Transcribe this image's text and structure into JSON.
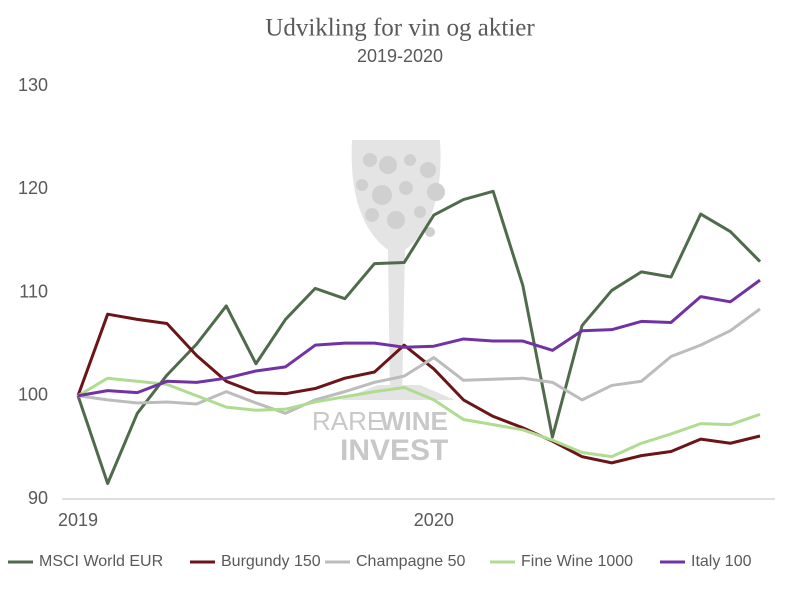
{
  "chart_data": {
    "type": "line",
    "title": "Udvikling for vin og aktier",
    "subtitle": "2019-2020",
    "categories": [
      "2019",
      null,
      null,
      null,
      null,
      null,
      null,
      null,
      null,
      null,
      null,
      null,
      "2020",
      null,
      null,
      null,
      null,
      null,
      null,
      null,
      null,
      null,
      null,
      null
    ],
    "ylim": [
      90,
      130
    ],
    "yticks": [
      90,
      100,
      110,
      120,
      130
    ],
    "grid": false,
    "legend": "bottom",
    "watermark": {
      "rare": "RARE",
      "wine": "WINE",
      "invest": "INVEST"
    },
    "series": [
      {
        "name": "MSCI World EUR",
        "color": "#4f6b4c",
        "values": [
          100,
          91.5,
          98.3,
          102,
          105,
          108.7,
          103.1,
          107.4,
          110.4,
          109.4,
          112.8,
          112.9,
          117.5,
          119,
          119.8,
          110.7,
          96,
          106.8,
          110.2,
          112,
          111.5,
          117.6,
          115.9,
          113
        ]
      },
      {
        "name": "Burgundy 150",
        "color": "#6b1518",
        "values": [
          100,
          107.9,
          107.4,
          107,
          103.9,
          101.4,
          100.3,
          100.2,
          100.7,
          101.7,
          102.3,
          104.9,
          102.6,
          99.6,
          98,
          96.9,
          95.6,
          94.1,
          93.5,
          94.2,
          94.6,
          95.8,
          95.4,
          96.1
        ]
      },
      {
        "name": "Champagne 50",
        "color": "#bcbcbc",
        "values": [
          100,
          99.6,
          99.3,
          99.4,
          99.2,
          100.4,
          99.3,
          98.3,
          99.6,
          100.4,
          101.3,
          101.9,
          103.7,
          101.5,
          101.6,
          101.7,
          101.3,
          99.6,
          101,
          101.4,
          103.8,
          104.9,
          106.3,
          108.4
        ]
      },
      {
        "name": "Fine Wine 1000",
        "color": "#b0dc92",
        "values": [
          100,
          101.7,
          101.4,
          101.1,
          100,
          98.9,
          98.6,
          98.7,
          99.4,
          99.9,
          100.4,
          100.8,
          99.6,
          97.7,
          97.2,
          96.7,
          95.7,
          94.5,
          94.1,
          95.4,
          96.3,
          97.3,
          97.2,
          98.2
        ]
      },
      {
        "name": "Italy 100",
        "color": "#7233a2",
        "values": [
          100,
          100.5,
          100.3,
          101.4,
          101.3,
          101.7,
          102.4,
          102.8,
          104.9,
          105.1,
          105.1,
          104.7,
          104.8,
          105.5,
          105.3,
          105.3,
          104.4,
          106.3,
          106.4,
          107.2,
          107.1,
          109.6,
          109.1,
          111.2
        ]
      }
    ]
  }
}
